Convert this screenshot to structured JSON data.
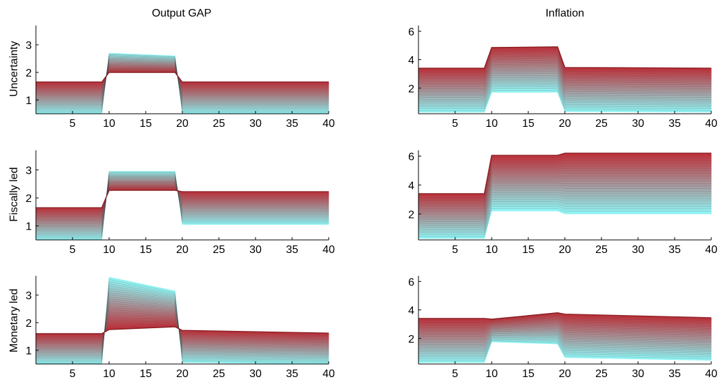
{
  "figure": {
    "column_titles": [
      "Output GAP",
      "Inflation"
    ],
    "row_labels": [
      "Uncertainty",
      "Fiscally led",
      "Monetary led"
    ]
  },
  "colors": {
    "band_low": "#8ff6f6",
    "band_high": "#c0303a",
    "axis": "#000000",
    "background": "#ffffff"
  },
  "chart_data": [
    {
      "type": "area",
      "title": "Output GAP",
      "ylabel": "Uncertainty",
      "xlim": [
        0,
        40
      ],
      "ylim": [
        0.5,
        3.7
      ],
      "xticks": [
        5,
        10,
        15,
        20,
        25,
        30,
        35,
        40
      ],
      "yticks": [
        1,
        2,
        3
      ],
      "x": [
        0,
        9,
        10,
        19,
        20,
        40
      ],
      "series": [
        {
          "values": [
            0.5,
            0.5,
            2.7,
            2.6,
            0.5,
            0.5
          ]
        },
        {
          "values": [
            1.65,
            1.65,
            2.0,
            2.0,
            1.65,
            1.65
          ]
        }
      ]
    },
    {
      "type": "area",
      "title": "Inflation",
      "ylabel": "",
      "xlim": [
        0,
        40
      ],
      "ylim": [
        0.2,
        6.4
      ],
      "xticks": [
        5,
        10,
        15,
        20,
        25,
        30,
        35,
        40
      ],
      "yticks": [
        2,
        4,
        6
      ],
      "x": [
        0,
        9,
        10,
        19,
        20,
        40
      ],
      "series": [
        {
          "values": [
            0.3,
            0.3,
            1.7,
            1.7,
            0.35,
            0.3
          ]
        },
        {
          "values": [
            3.4,
            3.4,
            4.85,
            4.9,
            3.45,
            3.4
          ]
        }
      ]
    },
    {
      "type": "area",
      "title": "",
      "ylabel": "Fiscally led",
      "xlim": [
        0,
        40
      ],
      "ylim": [
        0.5,
        3.7
      ],
      "xticks": [
        5,
        10,
        15,
        20,
        25,
        30,
        35,
        40
      ],
      "yticks": [
        1,
        2,
        3
      ],
      "x": [
        0,
        9,
        10,
        19,
        20,
        40
      ],
      "series": [
        {
          "values": [
            0.5,
            0.5,
            2.95,
            2.95,
            1.05,
            1.05
          ]
        },
        {
          "values": [
            1.65,
            1.65,
            2.27,
            2.27,
            2.22,
            2.22
          ]
        }
      ]
    },
    {
      "type": "area",
      "title": "",
      "ylabel": "",
      "xlim": [
        0,
        40
      ],
      "ylim": [
        0.2,
        6.4
      ],
      "xticks": [
        5,
        10,
        15,
        20,
        25,
        30,
        35,
        40
      ],
      "yticks": [
        2,
        4,
        6
      ],
      "x": [
        0,
        9,
        10,
        19,
        20,
        40
      ],
      "series": [
        {
          "values": [
            0.3,
            0.3,
            2.2,
            2.2,
            2.0,
            2.0
          ]
        },
        {
          "values": [
            3.4,
            3.4,
            6.05,
            6.05,
            6.2,
            6.2
          ]
        }
      ]
    },
    {
      "type": "area",
      "title": "",
      "ylabel": "Monetary led",
      "xlim": [
        0,
        40
      ],
      "ylim": [
        0.5,
        3.7
      ],
      "xticks": [
        5,
        10,
        15,
        20,
        25,
        30,
        35,
        40
      ],
      "yticks": [
        1,
        2,
        3
      ],
      "x": [
        0,
        9,
        10,
        19,
        20,
        40
      ],
      "series": [
        {
          "values": [
            0.5,
            0.5,
            3.65,
            3.15,
            0.55,
            0.5
          ]
        },
        {
          "values": [
            1.6,
            1.6,
            1.75,
            1.85,
            1.72,
            1.62
          ]
        }
      ]
    },
    {
      "type": "area",
      "title": "",
      "ylabel": "",
      "xlim": [
        0,
        40
      ],
      "ylim": [
        0.2,
        6.4
      ],
      "xticks": [
        5,
        10,
        15,
        20,
        25,
        30,
        35,
        40
      ],
      "yticks": [
        2,
        4,
        6
      ],
      "x": [
        0,
        9,
        10,
        19,
        20,
        40
      ],
      "series": [
        {
          "values": [
            0.3,
            0.3,
            1.75,
            1.6,
            0.65,
            0.45
          ]
        },
        {
          "values": [
            3.4,
            3.4,
            3.35,
            3.8,
            3.7,
            3.45
          ]
        }
      ]
    }
  ]
}
